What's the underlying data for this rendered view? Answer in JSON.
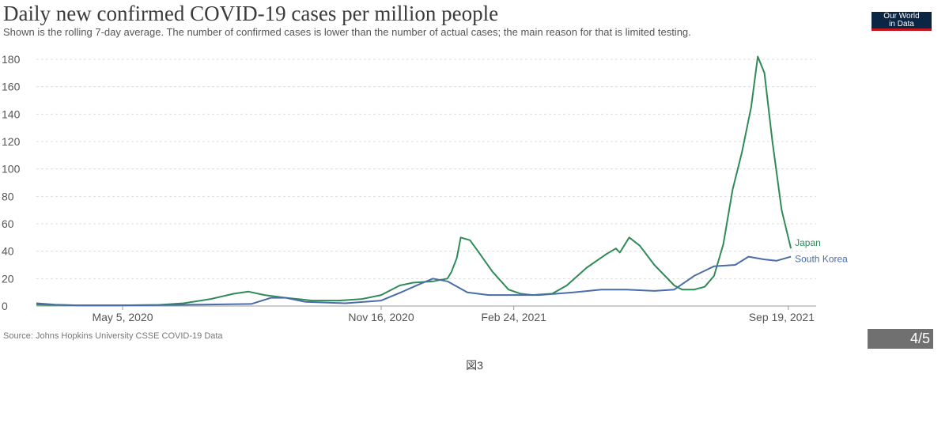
{
  "title": "Daily new confirmed COVID-19 cases per million people",
  "subtitle": "Shown is the rolling 7-day average. The number of confirmed cases is lower than the number of actual cases; the main reason for that is limited testing.",
  "logo": {
    "line1": "Our World",
    "line2": "in Data",
    "bg": "#0b2545",
    "accent": "#c3161c"
  },
  "source": "Source: Johns Hopkins University CSSE COVID-19 Data",
  "pager": "4/5",
  "caption": "図3",
  "chart_data": {
    "type": "line",
    "xlabel": "",
    "ylabel": "",
    "x_type": "date",
    "xlim": [
      "2020-03-01",
      "2021-10-10"
    ],
    "ylim": [
      0,
      180
    ],
    "yticks": [
      0,
      20,
      40,
      60,
      80,
      100,
      120,
      140,
      160,
      180
    ],
    "xticks": [
      {
        "date": "2020-05-05",
        "label": "May 5, 2020"
      },
      {
        "date": "2020-11-16",
        "label": "Nov 16, 2020"
      },
      {
        "date": "2021-02-24",
        "label": "Feb 24, 2021"
      },
      {
        "date": "2021-09-19",
        "label": "Sep 19, 2021"
      }
    ],
    "grid": true,
    "legend": "end-of-line labels",
    "series": [
      {
        "name": "Japan",
        "color": "#2e8b57",
        "points": [
          [
            "2020-03-01",
            1
          ],
          [
            "2020-04-01",
            0.5
          ],
          [
            "2020-05-01",
            0.5
          ],
          [
            "2020-06-01",
            0.8
          ],
          [
            "2020-06-20",
            2
          ],
          [
            "2020-07-10",
            5
          ],
          [
            "2020-07-28",
            9
          ],
          [
            "2020-08-08",
            10.5
          ],
          [
            "2020-08-20",
            8
          ],
          [
            "2020-09-05",
            6
          ],
          [
            "2020-09-25",
            4
          ],
          [
            "2020-10-15",
            4
          ],
          [
            "2020-11-01",
            5
          ],
          [
            "2020-11-16",
            8
          ],
          [
            "2020-11-30",
            15
          ],
          [
            "2020-12-10",
            17
          ],
          [
            "2020-12-25",
            18
          ],
          [
            "2021-01-05",
            20
          ],
          [
            "2021-01-08",
            25
          ],
          [
            "2021-01-12",
            35
          ],
          [
            "2021-01-15",
            50
          ],
          [
            "2021-01-22",
            48
          ],
          [
            "2021-01-28",
            40
          ],
          [
            "2021-02-08",
            25
          ],
          [
            "2021-02-20",
            12
          ],
          [
            "2021-03-01",
            9
          ],
          [
            "2021-03-10",
            8
          ],
          [
            "2021-03-25",
            9
          ],
          [
            "2021-04-05",
            15
          ],
          [
            "2021-04-20",
            28
          ],
          [
            "2021-05-05",
            38
          ],
          [
            "2021-05-12",
            42
          ],
          [
            "2021-05-15",
            39
          ],
          [
            "2021-05-22",
            50
          ],
          [
            "2021-05-30",
            44
          ],
          [
            "2021-06-10",
            30
          ],
          [
            "2021-06-25",
            15
          ],
          [
            "2021-07-01",
            12
          ],
          [
            "2021-07-10",
            12
          ],
          [
            "2021-07-18",
            14
          ],
          [
            "2021-07-25",
            22
          ],
          [
            "2021-08-01",
            45
          ],
          [
            "2021-08-08",
            85
          ],
          [
            "2021-08-15",
            112
          ],
          [
            "2021-08-22",
            145
          ],
          [
            "2021-08-27",
            182
          ],
          [
            "2021-09-01",
            170
          ],
          [
            "2021-09-07",
            120
          ],
          [
            "2021-09-14",
            70
          ],
          [
            "2021-09-21",
            42
          ]
        ]
      },
      {
        "name": "South Korea",
        "color": "#4a6da7",
        "points": [
          [
            "2020-03-01",
            2
          ],
          [
            "2020-03-15",
            1
          ],
          [
            "2020-04-01",
            0.5
          ],
          [
            "2020-05-05",
            0.5
          ],
          [
            "2020-07-01",
            1
          ],
          [
            "2020-08-10",
            1.5
          ],
          [
            "2020-08-25",
            6
          ],
          [
            "2020-09-05",
            6
          ],
          [
            "2020-09-20",
            3
          ],
          [
            "2020-10-20",
            2
          ],
          [
            "2020-11-16",
            4
          ],
          [
            "2020-12-01",
            10
          ],
          [
            "2020-12-15",
            16
          ],
          [
            "2020-12-25",
            20
          ],
          [
            "2021-01-05",
            18
          ],
          [
            "2021-01-20",
            10
          ],
          [
            "2021-02-05",
            8
          ],
          [
            "2021-02-24",
            8
          ],
          [
            "2021-03-15",
            8
          ],
          [
            "2021-04-10",
            10
          ],
          [
            "2021-05-01",
            12
          ],
          [
            "2021-05-20",
            12
          ],
          [
            "2021-06-10",
            11
          ],
          [
            "2021-06-25",
            12
          ],
          [
            "2021-07-10",
            22
          ],
          [
            "2021-07-25",
            29
          ],
          [
            "2021-08-10",
            30
          ],
          [
            "2021-08-20",
            36
          ],
          [
            "2021-09-01",
            34
          ],
          [
            "2021-09-10",
            33
          ],
          [
            "2021-09-21",
            36
          ]
        ]
      }
    ]
  }
}
